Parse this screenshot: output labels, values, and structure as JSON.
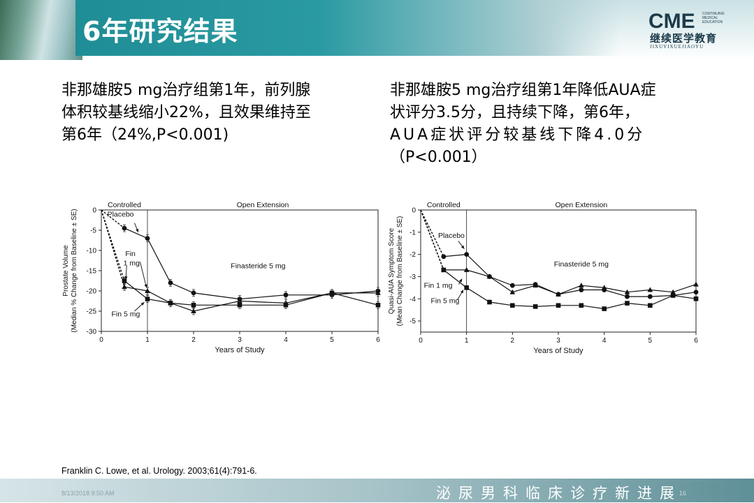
{
  "slide": {
    "title": "6年研究结果",
    "logo": {
      "main": "CME",
      "small": [
        "CONTINUING",
        "MEDICAL",
        "EDUCATION"
      ],
      "chinese": "继续医学教育",
      "pinyin": "JIXUYIXUEJIAOYU"
    },
    "left_text": [
      "非那雄胺5 mg治疗组第1年，前列腺",
      "体积较基线缩小22%，且效果维持至",
      "第6年（24%,P<0.001)"
    ],
    "right_text": [
      "非那雄胺5 mg治疗组第1年降低AUA症",
      "状评分3.5分，且持续下降，第6年，",
      "AUA症状评分较基线下降4.0分",
      "（P<0.001）"
    ],
    "citation": "Franklin C. Lowe, et al. Urology. 2003;61(4):791-6.",
    "footer": {
      "date": "8/13/2018 9:50 AM",
      "page": "16",
      "slogan": "泌尿男科临床诊疗新进展"
    }
  },
  "chart_data": [
    {
      "type": "line",
      "ylabel_lines": [
        "Prostate Volume",
        "(Median % Change from Baseline ± SE)"
      ],
      "xlabel": "Years of Study",
      "xlim": [
        0,
        6
      ],
      "ylim": [
        -30,
        0
      ],
      "xticks": [
        "0",
        "1",
        "2",
        "3",
        "4",
        "5",
        "6"
      ],
      "yticks": [
        "0",
        "-5",
        "-10",
        "-15",
        "-20",
        "-25",
        "-30"
      ],
      "annotations": {
        "controlled": "Controlled",
        "open": "Open Extension",
        "treatment": "Finasteride 5 mg",
        "placebo": "Placebo",
        "fin1_a": "Fin",
        "fin1_b": "1 mg",
        "fin5": "Fin 5 mg"
      },
      "series": [
        {
          "name": "Placebo",
          "marker": "circle",
          "x": [
            0.5,
            1,
            1.5,
            2,
            3,
            4,
            5,
            6
          ],
          "y": [
            -4.5,
            -7,
            -18,
            -20.5,
            -22,
            -21,
            -21,
            -20
          ]
        },
        {
          "name": "Fin 1 mg",
          "marker": "triangle",
          "x": [
            0.5,
            1,
            1.5,
            2,
            3,
            4,
            5,
            6
          ],
          "y": [
            -19,
            -20,
            -23,
            -25,
            -22.5,
            -23,
            -20.5,
            -20.5
          ]
        },
        {
          "name": "Fin 5 mg",
          "marker": "square",
          "x": [
            0.5,
            1,
            1.5,
            2,
            3,
            4,
            5,
            6
          ],
          "y": [
            -17.5,
            -22,
            -23,
            -23.5,
            -23.5,
            -23.5,
            -20.5,
            -23.5
          ]
        }
      ]
    },
    {
      "type": "line",
      "ylabel_lines": [
        "Quasi-AUA Symptom Score",
        "(Mean Change from Baseline ± SE)"
      ],
      "xlabel": "Years of Study",
      "xlim": [
        0,
        6
      ],
      "ylim": [
        -5.5,
        0
      ],
      "xticks": [
        "0",
        "1",
        "2",
        "3",
        "4",
        "5",
        "6"
      ],
      "yticks": [
        "0",
        "-1",
        "-2",
        "-3",
        "-4",
        "-5"
      ],
      "annotations": {
        "controlled": "Controlled",
        "open": "Open Extension",
        "treatment": "Finasteride 5 mg",
        "placebo": "Placebo",
        "fin1": "Fin 1 mg",
        "fin5": "Fin 5 mg"
      },
      "series": [
        {
          "name": "Placebo",
          "marker": "circle",
          "x": [
            0.5,
            1,
            1.5,
            2,
            2.5,
            3,
            3.5,
            4,
            4.5,
            5,
            5.5,
            6
          ],
          "y": [
            -2.1,
            -2,
            -3,
            -3.4,
            -3.35,
            -3.8,
            -3.6,
            -3.6,
            -3.9,
            -3.9,
            -3.85,
            -3.7
          ]
        },
        {
          "name": "Fin 1 mg",
          "marker": "triangle",
          "x": [
            0.5,
            1,
            1.5,
            2,
            2.5,
            3,
            3.5,
            4,
            4.5,
            5,
            5.5,
            6
          ],
          "y": [
            -2.7,
            -2.7,
            -3,
            -3.7,
            -3.4,
            -3.8,
            -3.4,
            -3.5,
            -3.7,
            -3.6,
            -3.7,
            -3.35
          ]
        },
        {
          "name": "Fin 5 mg",
          "marker": "square",
          "x": [
            0.5,
            1,
            1.5,
            2,
            2.5,
            3,
            3.5,
            4,
            4.5,
            5,
            5.5,
            6
          ],
          "y": [
            -2.7,
            -3.5,
            -4.15,
            -4.3,
            -4.35,
            -4.3,
            -4.3,
            -4.45,
            -4.2,
            -4.3,
            -3.85,
            -4
          ]
        }
      ]
    }
  ]
}
